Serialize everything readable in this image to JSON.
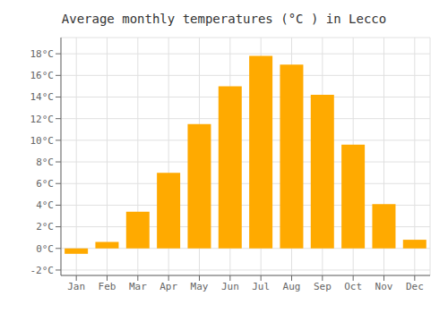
{
  "chart_data": {
    "type": "bar",
    "title": "Average monthly temperatures (°C ) in Lecco",
    "categories": [
      "Jan",
      "Feb",
      "Mar",
      "Apr",
      "May",
      "Jun",
      "Jul",
      "Aug",
      "Sep",
      "Oct",
      "Nov",
      "Dec"
    ],
    "values": [
      -0.5,
      0.6,
      3.4,
      7.0,
      11.5,
      15.0,
      17.8,
      17.0,
      14.2,
      9.6,
      4.1,
      0.8
    ],
    "color": "#FFAA00",
    "ylim": [
      -2.5,
      19.5
    ],
    "yticks": [
      {
        "value": -2,
        "label": "-2°C"
      },
      {
        "value": 0,
        "label": "0°C"
      },
      {
        "value": 2,
        "label": "2°C"
      },
      {
        "value": 4,
        "label": "4°C"
      },
      {
        "value": 6,
        "label": "6°C"
      },
      {
        "value": 8,
        "label": "8°C"
      },
      {
        "value": 10,
        "label": "10°C"
      },
      {
        "value": 12,
        "label": "12°C"
      },
      {
        "value": 14,
        "label": "14°C"
      },
      {
        "value": 16,
        "label": "16°C"
      },
      {
        "value": 18,
        "label": "18°C"
      }
    ],
    "grid": true
  }
}
